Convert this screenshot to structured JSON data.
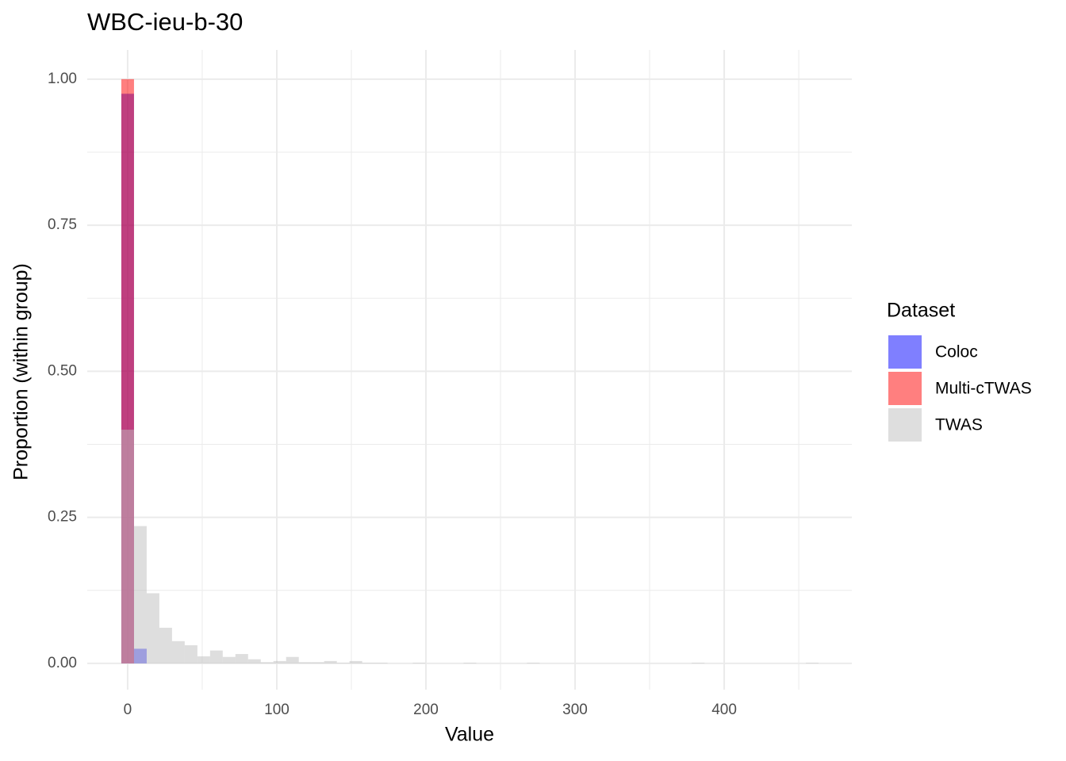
{
  "chart_data": {
    "type": "histogram",
    "title": "WBC-ieu-b-30",
    "x_label": "Value",
    "y_label": "Proportion (within group)",
    "legend_title": "Dataset",
    "legend_position": "right",
    "grid": true,
    "bins": [
      -4.25,
      4.25,
      12.75,
      21.25,
      29.75,
      38.25,
      46.75,
      55.25,
      63.75,
      72.25,
      80.75,
      89.25,
      97.75,
      106.25,
      114.75,
      123.25,
      131.75,
      140.25,
      148.75,
      157.25,
      165.75,
      174.25,
      182.75,
      191.25,
      199.75,
      208.25,
      216.75,
      225.25,
      233.75,
      242.25,
      250.75,
      259.25,
      267.75,
      276.25,
      284.75,
      293.25,
      301.75,
      310.25,
      318.75,
      327.25,
      335.75,
      344.25,
      352.75,
      361.25,
      369.75,
      378.25,
      386.75,
      395.25,
      403.75,
      412.25,
      420.75,
      429.25,
      437.75,
      446.25,
      454.75,
      463.25
    ],
    "series": [
      {
        "name": "Coloc",
        "color": "#0000ff",
        "values": [
          0.975,
          0.025,
          0,
          0,
          0,
          0,
          0,
          0,
          0,
          0,
          0,
          0,
          0,
          0,
          0,
          0,
          0,
          0,
          0,
          0,
          0,
          0,
          0,
          0,
          0,
          0,
          0,
          0,
          0,
          0,
          0,
          0,
          0,
          0,
          0,
          0,
          0,
          0,
          0,
          0,
          0,
          0,
          0,
          0,
          0,
          0,
          0,
          0,
          0,
          0,
          0,
          0,
          0,
          0,
          0
        ]
      },
      {
        "name": "Multi-cTWAS",
        "color": "#ff0000",
        "values": [
          1,
          0,
          0,
          0,
          0,
          0,
          0,
          0,
          0,
          0,
          0,
          0,
          0,
          0,
          0,
          0,
          0,
          0,
          0,
          0,
          0,
          0,
          0,
          0,
          0,
          0,
          0,
          0,
          0,
          0,
          0,
          0,
          0,
          0,
          0,
          0,
          0,
          0,
          0,
          0,
          0,
          0,
          0,
          0,
          0,
          0,
          0,
          0,
          0,
          0,
          0,
          0,
          0,
          0,
          0
        ]
      },
      {
        "name": "TWAS",
        "color": "#bebebe",
        "values": [
          0.4,
          0.235,
          0.12,
          0.061,
          0.038,
          0.031,
          0.012,
          0.022,
          0.011,
          0.016,
          0.007,
          0.002,
          0.004,
          0.011,
          0.002,
          0.002,
          0.004,
          0.001,
          0.004,
          0.001,
          0.001,
          0,
          0,
          0.001,
          0,
          0,
          0,
          0.001,
          0,
          0,
          0,
          0,
          0.001,
          0,
          0,
          0,
          0,
          0,
          0,
          0,
          0,
          0,
          0,
          0,
          0,
          0.001,
          0,
          0,
          0,
          0,
          0,
          0,
          0,
          0,
          0.001
        ]
      }
    ],
    "opacity": 0.5,
    "xlim": [
      -27.1,
      485.6
    ],
    "ylim": [
      -0.045,
      1.05
    ],
    "xticks": [
      0,
      100,
      200,
      300,
      400
    ],
    "x_minor_ticks": [
      50,
      150,
      250,
      350,
      450
    ],
    "yticks": [
      {
        "value": 0,
        "label": "0.00"
      },
      {
        "value": 0.25,
        "label": "0.25"
      },
      {
        "value": 0.5,
        "label": "0.50"
      },
      {
        "value": 0.75,
        "label": "0.75"
      },
      {
        "value": 1,
        "label": "1.00"
      }
    ],
    "y_minor_ticks": [
      0.125,
      0.375,
      0.625,
      0.875
    ]
  }
}
